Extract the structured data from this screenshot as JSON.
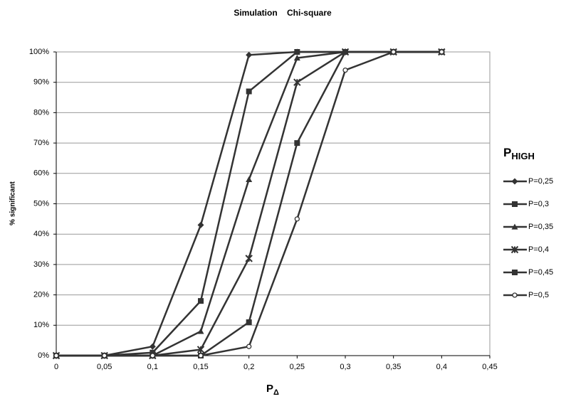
{
  "chart_data": {
    "type": "line",
    "title": "Simulation    Chi-square",
    "x_label": {
      "main": "P",
      "sub": "Δ"
    },
    "y_label": "% significant",
    "legend_title": {
      "main": "P",
      "sub": "HIGH"
    },
    "x": [
      0,
      0.05,
      0.1,
      0.15,
      0.2,
      0.25,
      0.3,
      0.35,
      0.4
    ],
    "series": [
      {
        "name": "P=0,25",
        "color": "#333333",
        "marker": "diamond",
        "values": [
          0,
          0,
          3,
          43,
          99,
          100,
          100,
          100,
          100
        ]
      },
      {
        "name": "P=0,3",
        "color": "#333333",
        "marker": "square",
        "values": [
          0,
          0,
          1,
          18,
          87,
          100,
          100,
          100,
          100
        ]
      },
      {
        "name": "P=0,35",
        "color": "#333333",
        "marker": "triangle",
        "values": [
          0,
          0,
          0,
          8,
          58,
          98,
          100,
          100,
          100
        ]
      },
      {
        "name": "P=0,4",
        "color": "#333333",
        "marker": "star",
        "values": [
          0,
          0,
          0,
          2,
          32,
          90,
          100,
          100,
          100
        ]
      },
      {
        "name": "P=0,45",
        "color": "#333333",
        "marker": "square",
        "values": [
          0,
          0,
          0,
          0,
          11,
          70,
          100,
          100,
          100
        ]
      },
      {
        "name": "P=0,5",
        "color": "#333333",
        "marker": "circle",
        "values": [
          0,
          0,
          0,
          0,
          3,
          45,
          94,
          100,
          100
        ]
      }
    ],
    "xlim": [
      0,
      0.45
    ],
    "xticks": [
      0,
      {
        "value": 0.05,
        "label": "0,05"
      },
      {
        "value": 0.1,
        "label": "0,1"
      },
      {
        "value": 0.15,
        "label": "0,15"
      },
      {
        "value": 0.2,
        "label": "0,2"
      },
      {
        "value": 0.25,
        "label": "0,25"
      },
      {
        "value": 0.3,
        "label": "0,3"
      },
      {
        "value": 0.35,
        "label": "0,35"
      },
      {
        "value": 0.4,
        "label": "0,4"
      },
      {
        "value": 0.45,
        "label": "0,45"
      }
    ],
    "ylim": [
      0,
      100
    ],
    "yticks": [
      {
        "value": 0,
        "label": "0%"
      },
      {
        "value": 10,
        "label": "10%"
      },
      {
        "value": 20,
        "label": "20%"
      },
      {
        "value": 30,
        "label": "30%"
      },
      {
        "value": 40,
        "label": "40%"
      },
      {
        "value": 50,
        "label": "50%"
      },
      {
        "value": 60,
        "label": "60%"
      },
      {
        "value": 70,
        "label": "70%"
      },
      {
        "value": 80,
        "label": "80%"
      },
      {
        "value": 90,
        "label": "90%"
      },
      {
        "value": 100,
        "label": "100%"
      }
    ],
    "grid": true
  }
}
